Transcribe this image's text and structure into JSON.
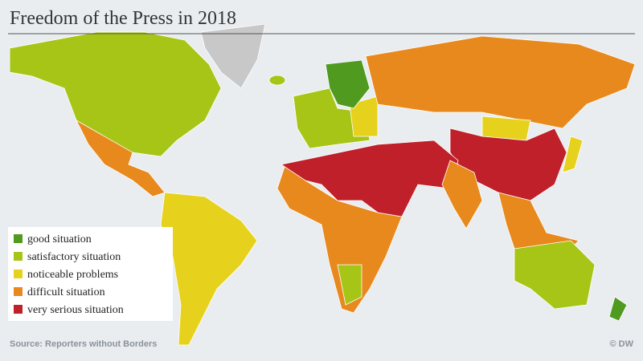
{
  "title": "Freedom of the Press in 2018",
  "legend": [
    {
      "label": "good situation",
      "color": "#4f9a1f"
    },
    {
      "label": "satisfactory situation",
      "color": "#a6c516"
    },
    {
      "label": "noticeable problems",
      "color": "#e6d21c"
    },
    {
      "label": "difficult situation",
      "color": "#e8891d"
    },
    {
      "label": "very serious situation",
      "color": "#c0202a"
    }
  ],
  "source": "Source: Reporters without Borders",
  "credit": "© DW"
}
